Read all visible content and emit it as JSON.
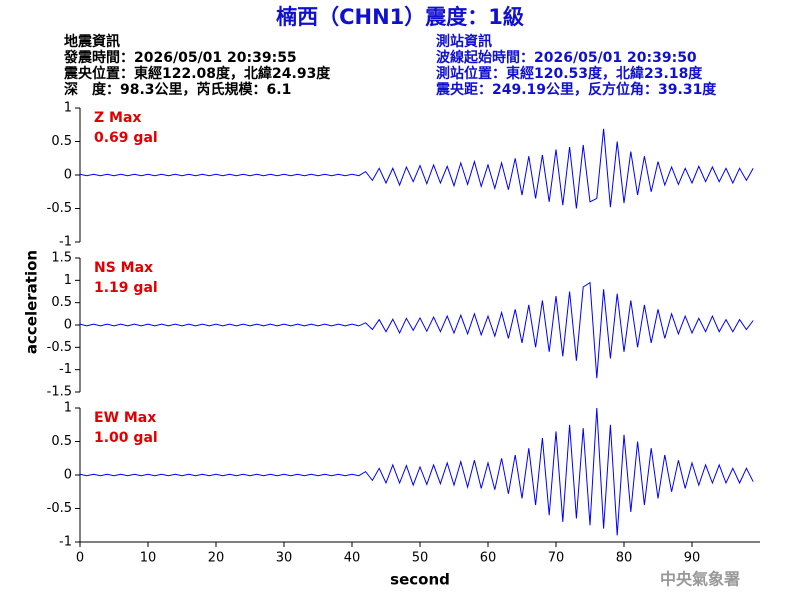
{
  "header": {
    "title": "楠西（CHN1）震度：1級",
    "left": [
      "地震資訊",
      "發震時間：2026/05/01 20:39:55",
      "震央位置：東經122.08度，北緯24.93度",
      "深　度：98.3公里，芮氏規模：6.1"
    ],
    "right": [
      "測站資訊",
      "波線起始時間：2026/05/01 20:39:50",
      "測站位置：東經120.53度，北緯23.18度",
      "震央距：249.19公里，反方位角：39.31度"
    ],
    "footer": "中央氣象署"
  },
  "y_label": "acceleration",
  "chart_data": [
    {
      "type": "line",
      "annotations": [
        "Z Max",
        "0.69 gal"
      ],
      "color": "#0000ff",
      "xlim": [
        0,
        100
      ],
      "ylim": [
        -1,
        1
      ],
      "yticks": [
        -1,
        -0.5,
        0,
        0.5,
        1
      ],
      "x": [
        0,
        1,
        2,
        3,
        4,
        5,
        6,
        7,
        8,
        9,
        10,
        11,
        12,
        13,
        14,
        15,
        16,
        17,
        18,
        19,
        20,
        21,
        22,
        23,
        24,
        25,
        26,
        27,
        28,
        29,
        30,
        31,
        32,
        33,
        34,
        35,
        36,
        37,
        38,
        39,
        40,
        41,
        42,
        43,
        44,
        45,
        46,
        47,
        48,
        49,
        50,
        51,
        52,
        53,
        54,
        55,
        56,
        57,
        58,
        59,
        60,
        61,
        62,
        63,
        64,
        65,
        66,
        67,
        68,
        69,
        70,
        71,
        72,
        73,
        74,
        75,
        76,
        77,
        78,
        79,
        80,
        81,
        82,
        83,
        84,
        85,
        86,
        87,
        88,
        89,
        90,
        91,
        92,
        93,
        94,
        95,
        96,
        97,
        98,
        99
      ],
      "values": [
        0.01,
        -0.01,
        0.01,
        -0.01,
        0.01,
        -0.01,
        0.01,
        -0.01,
        0.01,
        -0.01,
        0.01,
        -0.01,
        0.01,
        -0.01,
        0.01,
        -0.01,
        0.01,
        -0.01,
        0.01,
        -0.01,
        0.01,
        -0.01,
        0.01,
        -0.01,
        0.01,
        -0.01,
        0.01,
        -0.01,
        0.01,
        -0.01,
        0.01,
        -0.01,
        0.01,
        -0.01,
        0.01,
        -0.01,
        0.01,
        -0.01,
        0.01,
        -0.01,
        0.01,
        -0.01,
        0.05,
        -0.08,
        0.1,
        -0.12,
        0.1,
        -0.15,
        0.12,
        -0.1,
        0.14,
        -0.13,
        0.15,
        -0.12,
        0.13,
        -0.16,
        0.18,
        -0.14,
        0.2,
        -0.17,
        0.15,
        -0.2,
        0.18,
        -0.22,
        0.25,
        -0.3,
        0.28,
        -0.35,
        0.3,
        -0.4,
        0.38,
        -0.45,
        0.42,
        -0.5,
        0.45,
        -0.4,
        -0.35,
        0.69,
        -0.48,
        0.5,
        -0.42,
        0.35,
        -0.3,
        0.28,
        -0.25,
        0.2,
        -0.15,
        0.12,
        -0.14,
        0.1,
        -0.12,
        0.13,
        -0.1,
        0.12,
        -0.1,
        0.1,
        -0.12,
        0.1,
        -0.08,
        0.1
      ]
    },
    {
      "type": "line",
      "annotations": [
        "NS Max",
        "1.19 gal"
      ],
      "color": "#0000ff",
      "xlim": [
        0,
        100
      ],
      "ylim": [
        -1.5,
        1.5
      ],
      "yticks": [
        -1.5,
        -1,
        -0.5,
        0,
        0.5,
        1,
        1.5
      ],
      "x": [
        0,
        1,
        2,
        3,
        4,
        5,
        6,
        7,
        8,
        9,
        10,
        11,
        12,
        13,
        14,
        15,
        16,
        17,
        18,
        19,
        20,
        21,
        22,
        23,
        24,
        25,
        26,
        27,
        28,
        29,
        30,
        31,
        32,
        33,
        34,
        35,
        36,
        37,
        38,
        39,
        40,
        41,
        42,
        43,
        44,
        45,
        46,
        47,
        48,
        49,
        50,
        51,
        52,
        53,
        54,
        55,
        56,
        57,
        58,
        59,
        60,
        61,
        62,
        63,
        64,
        65,
        66,
        67,
        68,
        69,
        70,
        71,
        72,
        73,
        74,
        75,
        76,
        77,
        78,
        79,
        80,
        81,
        82,
        83,
        84,
        85,
        86,
        87,
        88,
        89,
        90,
        91,
        92,
        93,
        94,
        95,
        96,
        97,
        98,
        99
      ],
      "values": [
        0.02,
        -0.02,
        0.02,
        -0.02,
        0.02,
        -0.02,
        0.02,
        -0.02,
        0.02,
        -0.02,
        0.02,
        -0.02,
        0.02,
        -0.02,
        0.02,
        -0.02,
        0.02,
        -0.02,
        0.02,
        -0.02,
        0.02,
        -0.02,
        0.02,
        -0.02,
        0.02,
        -0.02,
        0.02,
        -0.02,
        0.02,
        -0.02,
        0.02,
        -0.02,
        0.02,
        -0.02,
        0.02,
        -0.02,
        0.02,
        -0.02,
        0.02,
        -0.02,
        0.02,
        -0.02,
        0.05,
        -0.1,
        0.12,
        -0.15,
        0.13,
        -0.18,
        0.15,
        -0.12,
        0.16,
        -0.14,
        0.18,
        -0.15,
        0.2,
        -0.18,
        0.22,
        -0.2,
        0.25,
        -0.22,
        0.2,
        -0.25,
        0.28,
        -0.3,
        0.35,
        -0.4,
        0.45,
        -0.5,
        0.55,
        -0.6,
        0.65,
        -0.7,
        0.75,
        -0.8,
        0.85,
        0.95,
        -1.19,
        0.8,
        -0.75,
        0.7,
        -0.6,
        0.55,
        -0.5,
        0.45,
        -0.4,
        0.35,
        -0.3,
        0.25,
        -0.2,
        0.2,
        -0.18,
        0.15,
        -0.15,
        0.2,
        -0.15,
        0.12,
        -0.15,
        0.12,
        -0.1,
        0.1
      ]
    },
    {
      "type": "line",
      "annotations": [
        "EW Max",
        "1.00 gal"
      ],
      "color": "#0000ff",
      "x_label": "second",
      "xlim": [
        0,
        100
      ],
      "xticks": [
        0,
        10,
        20,
        30,
        40,
        50,
        60,
        70,
        80,
        90
      ],
      "ylim": [
        -1,
        1
      ],
      "yticks": [
        -1,
        -0.5,
        0,
        0.5,
        1
      ],
      "x": [
        0,
        1,
        2,
        3,
        4,
        5,
        6,
        7,
        8,
        9,
        10,
        11,
        12,
        13,
        14,
        15,
        16,
        17,
        18,
        19,
        20,
        21,
        22,
        23,
        24,
        25,
        26,
        27,
        28,
        29,
        30,
        31,
        32,
        33,
        34,
        35,
        36,
        37,
        38,
        39,
        40,
        41,
        42,
        43,
        44,
        45,
        46,
        47,
        48,
        49,
        50,
        51,
        52,
        53,
        54,
        55,
        56,
        57,
        58,
        59,
        60,
        61,
        62,
        63,
        64,
        65,
        66,
        67,
        68,
        69,
        70,
        71,
        72,
        73,
        74,
        75,
        76,
        77,
        78,
        79,
        80,
        81,
        82,
        83,
        84,
        85,
        86,
        87,
        88,
        89,
        90,
        91,
        92,
        93,
        94,
        95,
        96,
        97,
        98,
        99
      ],
      "values": [
        0.01,
        -0.01,
        0.01,
        -0.01,
        0.01,
        -0.01,
        0.01,
        -0.01,
        0.01,
        -0.01,
        0.01,
        -0.01,
        0.01,
        -0.01,
        0.01,
        -0.01,
        0.01,
        -0.01,
        0.01,
        -0.01,
        0.01,
        -0.01,
        0.01,
        -0.01,
        0.01,
        -0.01,
        0.01,
        -0.01,
        0.01,
        -0.01,
        0.01,
        -0.01,
        0.01,
        -0.01,
        0.01,
        -0.01,
        0.01,
        -0.01,
        0.01,
        -0.01,
        0.01,
        -0.01,
        0.05,
        -0.08,
        0.1,
        -0.12,
        0.15,
        -0.12,
        0.14,
        -0.15,
        0.12,
        -0.14,
        0.15,
        -0.13,
        0.18,
        -0.15,
        0.2,
        -0.18,
        0.22,
        -0.2,
        0.18,
        -0.22,
        0.25,
        -0.28,
        0.3,
        -0.35,
        0.4,
        -0.45,
        0.55,
        -0.6,
        0.65,
        -0.7,
        0.75,
        -0.65,
        0.7,
        -0.75,
        1.0,
        -0.8,
        0.75,
        -0.9,
        0.6,
        -0.55,
        0.5,
        -0.45,
        0.4,
        -0.35,
        0.3,
        -0.25,
        0.22,
        -0.2,
        0.18,
        -0.15,
        0.15,
        -0.12,
        0.15,
        -0.12,
        0.1,
        -0.12,
        0.1,
        -0.1
      ]
    }
  ]
}
